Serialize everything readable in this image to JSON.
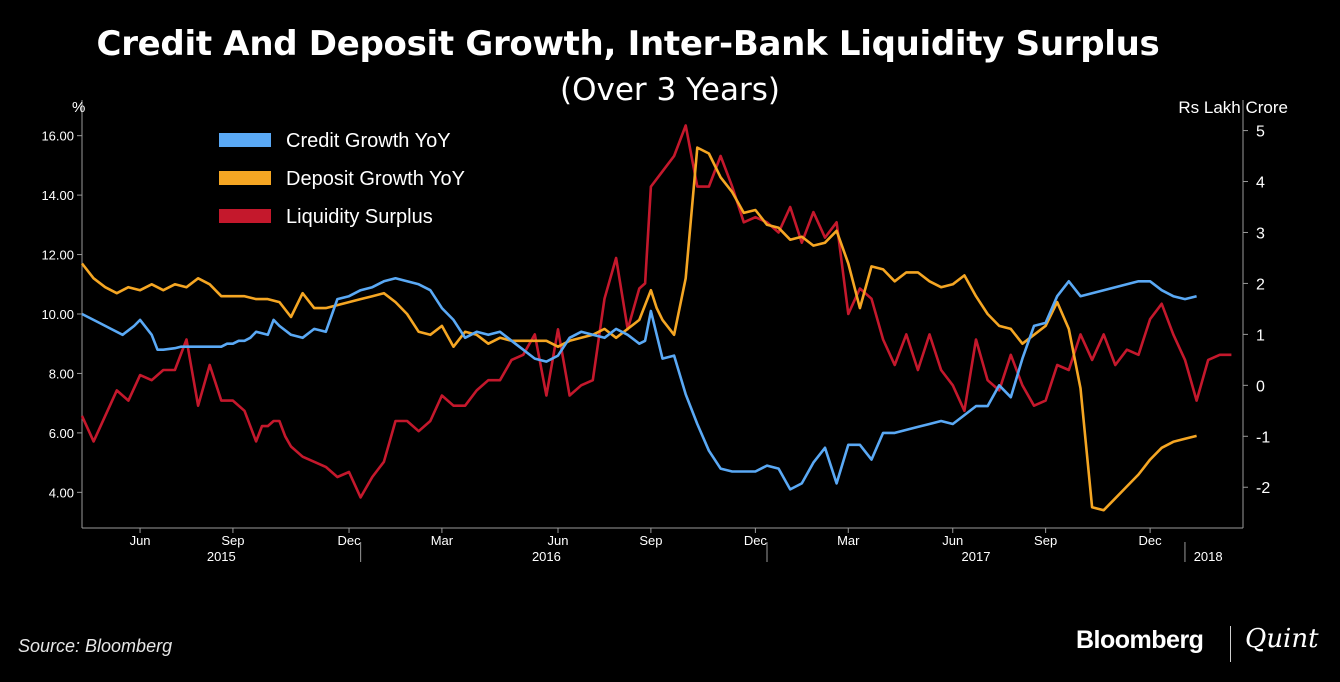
{
  "colors": {
    "credit": "#5aa9f5",
    "deposit": "#f5a623",
    "liquidity": "#c4182c",
    "axis": "#9a9a9a",
    "background": "#000000"
  },
  "chart_data": {
    "type": "line",
    "title": "Credit And Deposit Growth, Inter-Bank Liquidity Surplus",
    "subtitle": "(Over 3 Years)",
    "left_axis": {
      "label": "%",
      "ylim": [
        2.8,
        17.2
      ],
      "ticks": [
        4,
        6,
        8,
        10,
        12,
        14,
        16
      ],
      "tick_labels": [
        "4.00",
        "6.00",
        "8.00",
        "10.00",
        "12.00",
        "14.00",
        "16.00"
      ]
    },
    "right_axis": {
      "label": "Rs Lakh Crore",
      "ylim": [
        -2.8,
        5.6
      ],
      "ticks": [
        -2,
        -1,
        0,
        1,
        2,
        3,
        4,
        5
      ],
      "tick_labels": [
        "-2",
        "-1",
        "0",
        "1",
        "2",
        "3",
        "4",
        "5"
      ]
    },
    "x_axis": {
      "range": [
        0,
        100
      ],
      "month_ticks": [
        {
          "x": 5,
          "label": "Jun"
        },
        {
          "x": 13,
          "label": "Sep"
        },
        {
          "x": 23,
          "label": "Dec"
        },
        {
          "x": 31,
          "label": "Mar"
        },
        {
          "x": 41,
          "label": "Jun"
        },
        {
          "x": 49,
          "label": "Sep"
        },
        {
          "x": 58,
          "label": "Dec"
        },
        {
          "x": 66,
          "label": "Mar"
        },
        {
          "x": 75,
          "label": "Jun"
        },
        {
          "x": 83,
          "label": "Sep"
        },
        {
          "x": 92,
          "label": "Dec"
        }
      ],
      "year_labels": [
        {
          "x": 12,
          "label": "2015"
        },
        {
          "x": 40,
          "label": "2016"
        },
        {
          "x": 77,
          "label": "2017"
        },
        {
          "x": 97,
          "label": "2018"
        }
      ],
      "year_separators": [
        24,
        59,
        95
      ]
    },
    "legend_position": "top-left",
    "series": [
      {
        "name": "Credit Growth YoY",
        "axis": "left",
        "x": [
          0,
          1.5,
          2.5,
          3.5,
          4.5,
          5,
          6,
          6.5,
          7,
          8,
          8.5,
          9,
          10,
          11,
          12,
          12.5,
          13,
          13.5,
          14,
          14.5,
          15,
          16,
          16.5,
          17,
          18,
          19,
          20,
          21,
          22,
          23,
          24,
          25,
          26,
          27,
          28,
          29,
          30,
          31,
          32,
          33,
          34,
          35,
          36,
          37,
          38,
          39,
          40,
          41,
          42,
          43,
          44,
          45,
          46,
          47,
          48,
          48.5,
          49,
          50,
          51,
          52,
          53,
          54,
          55,
          56,
          57,
          58,
          59,
          60,
          61,
          62,
          63,
          64,
          65,
          66,
          67,
          68,
          69,
          70,
          71,
          72,
          73,
          74,
          75,
          76,
          77,
          78,
          79,
          80,
          81,
          82,
          83,
          84,
          85,
          86,
          87,
          88,
          89,
          90,
          91,
          92,
          93,
          94,
          95,
          96
        ],
        "values": [
          10.0,
          9.7,
          9.5,
          9.3,
          9.6,
          9.8,
          9.3,
          8.8,
          8.8,
          8.85,
          8.9,
          8.9,
          8.9,
          8.9,
          8.9,
          9.0,
          9.0,
          9.1,
          9.1,
          9.2,
          9.4,
          9.3,
          9.8,
          9.6,
          9.3,
          9.2,
          9.5,
          9.4,
          10.5,
          10.6,
          10.8,
          10.9,
          11.1,
          11.2,
          11.1,
          11.0,
          10.8,
          10.2,
          9.8,
          9.2,
          9.4,
          9.3,
          9.4,
          9.1,
          8.8,
          8.5,
          8.4,
          8.6,
          9.2,
          9.4,
          9.3,
          9.2,
          9.5,
          9.3,
          9.0,
          9.1,
          10.1,
          8.5,
          8.6,
          7.3,
          6.3,
          5.4,
          4.8,
          4.7,
          4.7,
          4.7,
          4.9,
          4.8,
          4.1,
          4.3,
          5.0,
          5.5,
          4.3,
          5.6,
          5.6,
          5.1,
          6.0,
          6.0,
          6.1,
          6.2,
          6.3,
          6.4,
          6.3,
          6.6,
          6.9,
          6.9,
          7.6,
          7.2,
          8.5,
          9.6,
          9.7,
          10.6,
          11.1,
          10.6,
          10.7,
          10.8,
          10.9,
          11.0,
          11.1,
          11.1,
          10.8,
          10.6,
          10.5,
          10.6
        ]
      },
      {
        "name": "Deposit Growth YoY",
        "axis": "left",
        "x": [
          0,
          1,
          2,
          3,
          4,
          5,
          6,
          7,
          8,
          9,
          10,
          11,
          12,
          13,
          14,
          15,
          16,
          17,
          18,
          19,
          20,
          21,
          22,
          23,
          24,
          25,
          26,
          27,
          28,
          29,
          30,
          31,
          32,
          33,
          34,
          35,
          36,
          37,
          38,
          39,
          40,
          41,
          42,
          43,
          44,
          45,
          46,
          47,
          48,
          49,
          49.5,
          50,
          51,
          52,
          53,
          54,
          55,
          56,
          57,
          58,
          59,
          60,
          61,
          62,
          63,
          64,
          65,
          66,
          67,
          68,
          69,
          70,
          71,
          72,
          73,
          74,
          75,
          76,
          77,
          78,
          79,
          80,
          81,
          82,
          83,
          84,
          85,
          86,
          87,
          88,
          89,
          90,
          91,
          92,
          93,
          94,
          95,
          96
        ],
        "values": [
          11.7,
          11.2,
          10.9,
          10.7,
          10.9,
          10.8,
          11.0,
          10.8,
          11.0,
          10.9,
          11.2,
          11.0,
          10.6,
          10.6,
          10.6,
          10.5,
          10.5,
          10.4,
          9.9,
          10.7,
          10.2,
          10.2,
          10.3,
          10.4,
          10.5,
          10.6,
          10.7,
          10.4,
          10.0,
          9.4,
          9.3,
          9.6,
          8.9,
          9.4,
          9.3,
          9.0,
          9.2,
          9.1,
          9.1,
          9.1,
          9.1,
          8.9,
          9.1,
          9.2,
          9.3,
          9.5,
          9.2,
          9.5,
          9.8,
          10.8,
          10.2,
          9.8,
          9.3,
          11.2,
          15.6,
          15.4,
          14.6,
          14.1,
          13.4,
          13.5,
          13.0,
          12.9,
          12.5,
          12.6,
          12.3,
          12.4,
          12.8,
          11.7,
          10.2,
          11.6,
          11.5,
          11.1,
          11.4,
          11.4,
          11.1,
          10.9,
          11.0,
          11.3,
          10.6,
          10.0,
          9.6,
          9.5,
          9.0,
          9.3,
          9.6,
          10.4,
          9.5,
          7.5,
          3.5,
          3.4,
          3.8,
          4.2,
          4.6,
          5.1,
          5.5,
          5.7,
          5.8,
          5.9
        ]
      },
      {
        "name": "Liquidity Surplus",
        "axis": "right",
        "x": [
          0,
          1,
          2,
          3,
          4,
          5,
          6,
          7,
          8,
          9,
          10,
          11,
          12,
          13,
          14,
          15,
          15.5,
          16,
          16.5,
          17,
          17.5,
          18,
          19,
          20,
          21,
          22,
          23,
          24,
          25,
          26,
          27,
          28,
          29,
          30,
          31,
          32,
          33,
          34,
          35,
          36,
          37,
          38,
          39,
          40,
          41,
          42,
          43,
          44,
          45,
          46,
          47,
          48,
          48.5,
          49,
          50,
          51,
          52,
          53,
          54,
          55,
          56,
          57,
          58,
          59,
          60,
          61,
          62,
          63,
          64,
          65,
          66,
          67,
          68,
          69,
          70,
          71,
          72,
          73,
          74,
          75,
          76,
          77,
          78,
          79,
          80,
          81,
          82,
          83,
          84,
          85,
          86,
          87,
          88,
          89,
          90,
          91,
          92,
          93,
          94,
          95,
          96,
          97,
          98,
          99
        ],
        "values": [
          -0.6,
          -1.1,
          -0.6,
          -0.1,
          -0.3,
          0.2,
          0.1,
          0.3,
          0.3,
          0.9,
          -0.4,
          0.4,
          -0.3,
          -0.3,
          -0.5,
          -1.1,
          -0.8,
          -0.8,
          -0.7,
          -0.7,
          -1.0,
          -1.2,
          -1.4,
          -1.5,
          -1.6,
          -1.8,
          -1.7,
          -2.2,
          -1.8,
          -1.5,
          -0.7,
          -0.7,
          -0.9,
          -0.7,
          -0.2,
          -0.4,
          -0.4,
          -0.1,
          0.1,
          0.1,
          0.5,
          0.6,
          1.0,
          -0.2,
          1.1,
          -0.2,
          0.0,
          0.1,
          1.7,
          2.5,
          1.1,
          1.9,
          2.0,
          3.9,
          4.2,
          4.5,
          5.1,
          3.9,
          3.9,
          4.5,
          3.9,
          3.2,
          3.3,
          3.2,
          3.0,
          3.5,
          2.8,
          3.4,
          2.9,
          3.2,
          1.4,
          1.9,
          1.7,
          0.9,
          0.4,
          1.0,
          0.3,
          1.0,
          0.3,
          0.0,
          -0.5,
          0.9,
          0.1,
          -0.1,
          0.6,
          0.0,
          -0.4,
          -0.3,
          0.4,
          0.3,
          1.0,
          0.5,
          1.0,
          0.4,
          0.7,
          0.6,
          1.3,
          1.6,
          1.0,
          0.5,
          -0.3,
          0.5,
          0.6,
          0.6
        ]
      }
    ]
  }
}
